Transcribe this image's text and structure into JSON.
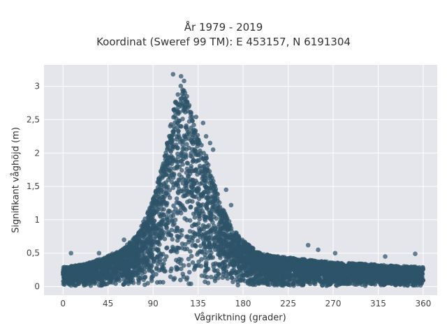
{
  "chart_data": {
    "type": "scatter",
    "title_lines": [
      "År 1979 - 2019",
      "Koordinat (Sweref 99 TM): E 453157, N 6191304"
    ],
    "xlabel": "Vågriktning (grader)",
    "ylabel": "Signifikant våghöjd (m)",
    "xlim": [
      -19,
      374
    ],
    "ylim": [
      -0.13,
      3.32
    ],
    "xticks": [
      0,
      45,
      90,
      135,
      180,
      225,
      270,
      315,
      360
    ],
    "xtick_labels": [
      "0",
      "45",
      "90",
      "135",
      "180",
      "225",
      "270",
      "315",
      "360"
    ],
    "yticks": [
      0,
      0.5,
      1,
      1.5,
      2,
      2.5,
      3
    ],
    "ytick_labels": [
      "0",
      "0,5",
      "1",
      "1,5",
      "2",
      "2,5",
      "3"
    ],
    "grid": true,
    "marker_color": "#2e5369",
    "background": "#e5e5ec",
    "envelope": {
      "x": [
        0,
        20,
        40,
        60,
        75,
        90,
        100,
        108,
        112,
        118,
        125,
        132,
        140,
        150,
        160,
        170,
        180,
        195,
        210,
        240,
        270,
        300,
        330,
        360
      ],
      "y_max": [
        0.28,
        0.32,
        0.42,
        0.55,
        0.78,
        1.3,
        1.85,
        2.45,
        2.85,
        3.05,
        2.8,
        2.4,
        2.1,
        1.6,
        1.15,
        0.85,
        0.68,
        0.5,
        0.45,
        0.4,
        0.35,
        0.33,
        0.3,
        0.28
      ]
    },
    "outliers": [
      {
        "x": 110,
        "y": 3.18
      },
      {
        "x": 118,
        "y": 3.15
      },
      {
        "x": 121,
        "y": 3.08
      },
      {
        "x": 133,
        "y": 2.54
      },
      {
        "x": 140,
        "y": 2.45
      },
      {
        "x": 143,
        "y": 2.25
      },
      {
        "x": 147,
        "y": 2.15
      },
      {
        "x": 150,
        "y": 2.05
      },
      {
        "x": 163,
        "y": 1.45
      },
      {
        "x": 168,
        "y": 1.22
      },
      {
        "x": 8,
        "y": 0.5
      },
      {
        "x": 245,
        "y": 0.62
      },
      {
        "x": 255,
        "y": 0.55
      },
      {
        "x": 272,
        "y": 0.5
      },
      {
        "x": 352,
        "y": 0.49
      },
      {
        "x": 322,
        "y": 0.45
      },
      {
        "x": 36,
        "y": 0.5
      },
      {
        "x": 61,
        "y": 0.7
      },
      {
        "x": 85,
        "y": 1.12
      },
      {
        "x": 97,
        "y": 1.6
      }
    ]
  }
}
